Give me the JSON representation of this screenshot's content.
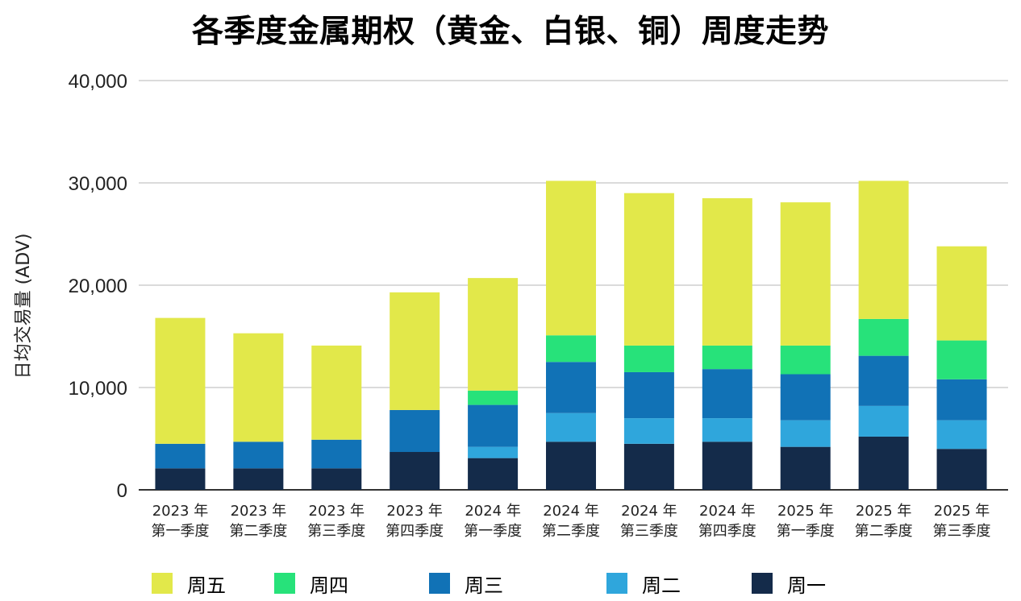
{
  "chart_data": {
    "type": "bar",
    "stacked": true,
    "title": "各季度金属期权（黄金、白银、铜）周度走势",
    "ylabel": "日均交易量 (ADV)",
    "xlabel": "",
    "ylim": [
      0,
      40000
    ],
    "yticks": [
      "0",
      "10,000",
      "20,000",
      "30,000",
      "40,000"
    ],
    "grid": true,
    "legend_position": "bottom",
    "categories": [
      [
        "2023 年",
        "第一季度"
      ],
      [
        "2023 年",
        "第二季度"
      ],
      [
        "2023 年",
        "第三季度"
      ],
      [
        "2023 年",
        "第四季度"
      ],
      [
        "2024 年",
        "第一季度"
      ],
      [
        "2024 年",
        "第二季度"
      ],
      [
        "2024 年",
        "第三季度"
      ],
      [
        "2024 年",
        "第四季度"
      ],
      [
        "2025 年",
        "第一季度"
      ],
      [
        "2025 年",
        "第二季度"
      ],
      [
        "2025 年",
        "第三季度"
      ]
    ],
    "series": [
      {
        "name": "周一",
        "color": "#142b4a",
        "values": [
          2100,
          2100,
          2100,
          3700,
          3100,
          4700,
          4500,
          4700,
          4200,
          5200,
          4000
        ]
      },
      {
        "name": "周二",
        "color": "#2fa6dc",
        "values": [
          0,
          0,
          0,
          0,
          1100,
          2800,
          2500,
          2300,
          2600,
          3000,
          2800
        ]
      },
      {
        "name": "周三",
        "color": "#1172b6",
        "values": [
          2400,
          2600,
          2800,
          4100,
          4100,
          5000,
          4500,
          4800,
          4500,
          4900,
          4000
        ]
      },
      {
        "name": "周四",
        "color": "#27e27a",
        "values": [
          0,
          0,
          0,
          0,
          1400,
          2600,
          2600,
          2300,
          2800,
          3600,
          3800
        ]
      },
      {
        "name": "周五",
        "color": "#e2e84a",
        "values": [
          12300,
          10600,
          9200,
          11500,
          11000,
          15100,
          14900,
          14400,
          14000,
          13500,
          9200
        ]
      }
    ],
    "legend_order": [
      "周五",
      "周四",
      "周三",
      "周二",
      "周一"
    ]
  }
}
